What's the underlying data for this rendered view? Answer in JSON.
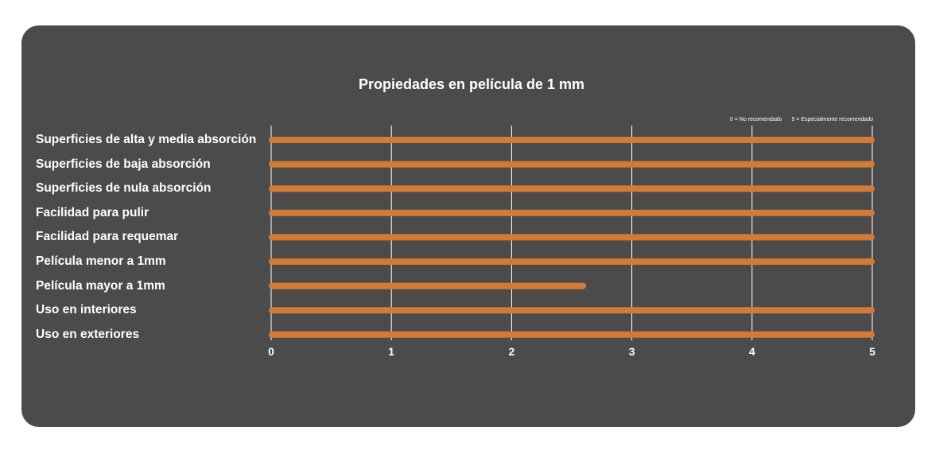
{
  "chart_data": {
    "type": "bar",
    "orientation": "horizontal",
    "title": "Propiedades en película de 1 mm",
    "legend_note": {
      "min": "0 = No recomendado",
      "max": "5 = Especialmente recomendado"
    },
    "categories": [
      "Superficies de alta y media absorción",
      "Superficies de baja absorción",
      "Superficies de nula absorción",
      "Facilidad para pulir",
      "Facilidad para requemar",
      "Película menor a 1mm",
      "Película mayor a 1mm",
      "Uso en interiores",
      "Uso en exteriores"
    ],
    "values": [
      5,
      5,
      5,
      5,
      5,
      5,
      2.6,
      5,
      5
    ],
    "xlim": [
      0,
      5
    ],
    "xticks": [
      "0",
      "1",
      "2",
      "3",
      "4",
      "5"
    ],
    "grid": true,
    "colors": {
      "bar": "#d27a36",
      "background": "#4b4b4b",
      "grid": "#ffffff",
      "text": "#ffffff"
    }
  }
}
